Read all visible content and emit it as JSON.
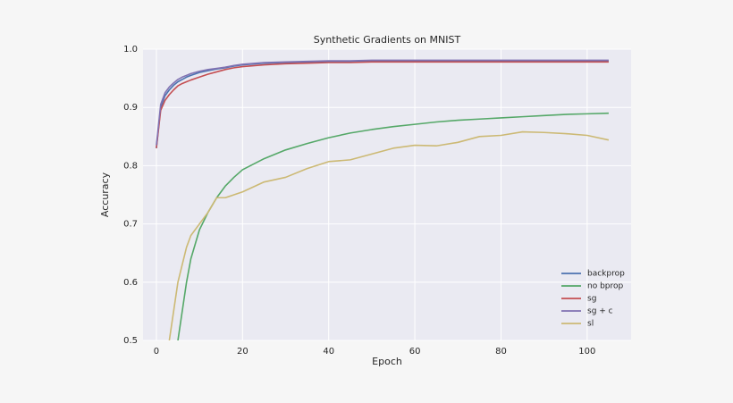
{
  "chart_data": {
    "type": "line",
    "title": "Synthetic Gradients on MNIST",
    "xlabel": "Epoch",
    "ylabel": "Accuracy",
    "x": [
      0,
      1,
      2,
      3,
      4,
      5,
      6,
      7,
      8,
      10,
      12,
      14,
      16,
      18,
      20,
      25,
      30,
      35,
      40,
      45,
      50,
      55,
      60,
      65,
      70,
      75,
      80,
      85,
      90,
      95,
      100,
      105
    ],
    "series": [
      {
        "name": "backprop",
        "color": "#4c72b0",
        "values": [
          0.83,
          0.9,
          0.92,
          0.93,
          0.938,
          0.944,
          0.948,
          0.952,
          0.955,
          0.96,
          0.963,
          0.966,
          0.968,
          0.971,
          0.973,
          0.976,
          0.977,
          0.978,
          0.979,
          0.979,
          0.98,
          0.98,
          0.98,
          0.98,
          0.98,
          0.98,
          0.98,
          0.98,
          0.98,
          0.98,
          0.98,
          0.98
        ]
      },
      {
        "name": "no bprop",
        "color": "#55a868",
        "values": [
          null,
          null,
          null,
          null,
          null,
          0.5,
          0.55,
          0.6,
          0.64,
          0.69,
          0.72,
          0.745,
          0.765,
          0.78,
          0.793,
          0.812,
          0.827,
          0.838,
          0.848,
          0.856,
          0.862,
          0.867,
          0.871,
          0.875,
          0.878,
          0.88,
          0.882,
          0.884,
          0.886,
          0.888,
          0.889,
          0.89
        ]
      },
      {
        "name": "sg",
        "color": "#c44e52",
        "values": [
          0.83,
          0.895,
          0.912,
          0.922,
          0.93,
          0.937,
          0.941,
          0.944,
          0.947,
          0.952,
          0.957,
          0.961,
          0.965,
          0.968,
          0.97,
          0.973,
          0.975,
          0.976,
          0.977,
          0.977,
          0.978,
          0.978,
          0.978,
          0.978,
          0.978,
          0.978,
          0.978,
          0.978,
          0.978,
          0.978,
          0.978,
          0.978
        ]
      },
      {
        "name": "sg + c",
        "color": "#8172b2",
        "values": [
          0.835,
          0.905,
          0.925,
          0.935,
          0.942,
          0.948,
          0.952,
          0.955,
          0.958,
          0.962,
          0.965,
          0.967,
          0.969,
          0.972,
          0.974,
          0.977,
          0.978,
          0.979,
          0.98,
          0.98,
          0.981,
          0.981,
          0.981,
          0.981,
          0.981,
          0.981,
          0.981,
          0.981,
          0.981,
          0.981,
          0.981,
          0.981
        ]
      },
      {
        "name": "sl",
        "color": "#ccb974",
        "values": [
          null,
          null,
          null,
          0.5,
          0.55,
          0.6,
          0.63,
          0.66,
          0.68,
          0.7,
          0.72,
          0.745,
          0.745,
          0.75,
          0.755,
          0.772,
          0.78,
          0.795,
          0.807,
          0.81,
          0.82,
          0.83,
          0.835,
          0.834,
          0.84,
          0.85,
          0.852,
          0.858,
          0.857,
          0.855,
          0.852,
          0.844
        ]
      }
    ],
    "xlim": [
      -3.1,
      110.2
    ],
    "xticks": [
      0,
      20,
      40,
      60,
      80,
      100
    ],
    "ylim": [
      0.5,
      1.0
    ],
    "yticks": [
      0.5,
      0.6,
      0.7,
      0.8,
      0.9,
      {
        "value": 1.0,
        "label": "1.0"
      }
    ],
    "grid": true,
    "legend": "lower right"
  }
}
